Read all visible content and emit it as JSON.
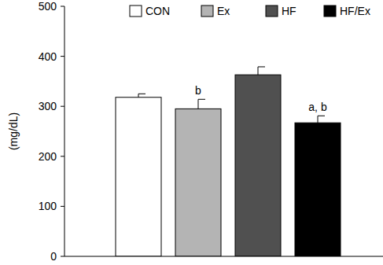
{
  "chart_data": {
    "type": "bar",
    "categories": [
      "CON",
      "Ex",
      "HF",
      "HF/Ex"
    ],
    "values": [
      318,
      295,
      363,
      267
    ],
    "errors": [
      7,
      19,
      16,
      14
    ],
    "annotations": [
      null,
      "b",
      null,
      "a, b"
    ],
    "colors": [
      "#ffffff",
      "#b4b4b4",
      "#505050",
      "#000000"
    ],
    "y_label": "(mg/dL)",
    "ylim": [
      0,
      500
    ],
    "yticks": [
      0,
      100,
      200,
      300,
      400,
      500
    ],
    "legend": "top",
    "tick_labels": "y",
    "grid": false
  }
}
